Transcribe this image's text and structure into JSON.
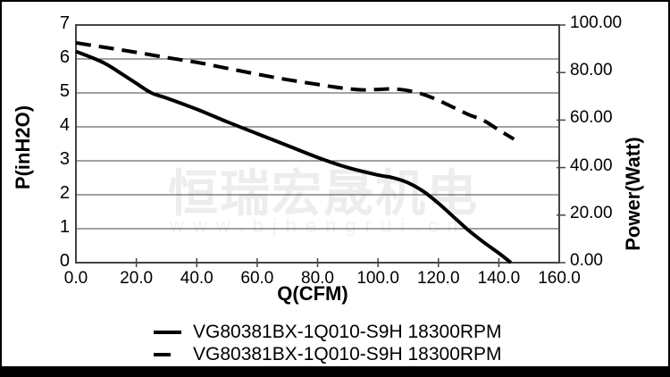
{
  "watermark": {
    "cjk_text": "恒瑞宏晟机电",
    "url_text": "www.bjhengrui.cn"
  },
  "chart_data": {
    "type": "line",
    "title": "",
    "xlabel": "Q(CFM)",
    "ylabel_left": "P(inH2O)",
    "ylabel_right": "Power(Watt)",
    "xlim": [
      0,
      160
    ],
    "ylim_left": [
      0,
      7
    ],
    "ylim_right": [
      0,
      100
    ],
    "grid": "horizontal",
    "legend_position": "bottom",
    "x_tick_labels": [
      "0.0",
      "20.0",
      "40.0",
      "60.0",
      "80.0",
      "100.0",
      "120.0",
      "140.0",
      "160.0"
    ],
    "y_left_tick_labels": [
      "7",
      "6",
      "5",
      "4",
      "3",
      "2",
      "1",
      "0"
    ],
    "y_right_tick_labels": [
      "100.00",
      "80.00",
      "60.00",
      "40.00",
      "20.00",
      "0.00"
    ],
    "line_color": "#000000",
    "grid_color": "#444444",
    "series": [
      {
        "name": "VG80381BX-1Q010-S9H 18300RPM",
        "axis": "left",
        "style": "solid",
        "x": [
          0,
          5,
          10,
          15,
          20,
          25,
          30,
          40,
          50,
          60,
          70,
          80,
          90,
          100,
          105,
          110,
          115,
          120,
          125,
          130,
          135,
          140,
          144
        ],
        "y": [
          6.22,
          6.05,
          5.85,
          5.57,
          5.28,
          5.0,
          4.85,
          4.52,
          4.15,
          3.8,
          3.45,
          3.1,
          2.8,
          2.58,
          2.5,
          2.35,
          2.1,
          1.75,
          1.35,
          0.95,
          0.6,
          0.28,
          0
        ]
      },
      {
        "name": "VG80381BX-1Q010-S9H 18300RPM",
        "axis": "right",
        "style": "dashed",
        "x": [
          0,
          10,
          20,
          30,
          40,
          50,
          60,
          70,
          80,
          85,
          90,
          95,
          100,
          105,
          110,
          115,
          120,
          125,
          130,
          135,
          140,
          145
        ],
        "y": [
          92.5,
          90.5,
          88.5,
          86.3,
          84.3,
          81.8,
          79.3,
          77.0,
          75.0,
          74.0,
          73.2,
          72.7,
          72.9,
          73.1,
          72.4,
          70.8,
          68.3,
          65.3,
          62.3,
          59.8,
          55.8,
          52.0
        ]
      }
    ]
  }
}
